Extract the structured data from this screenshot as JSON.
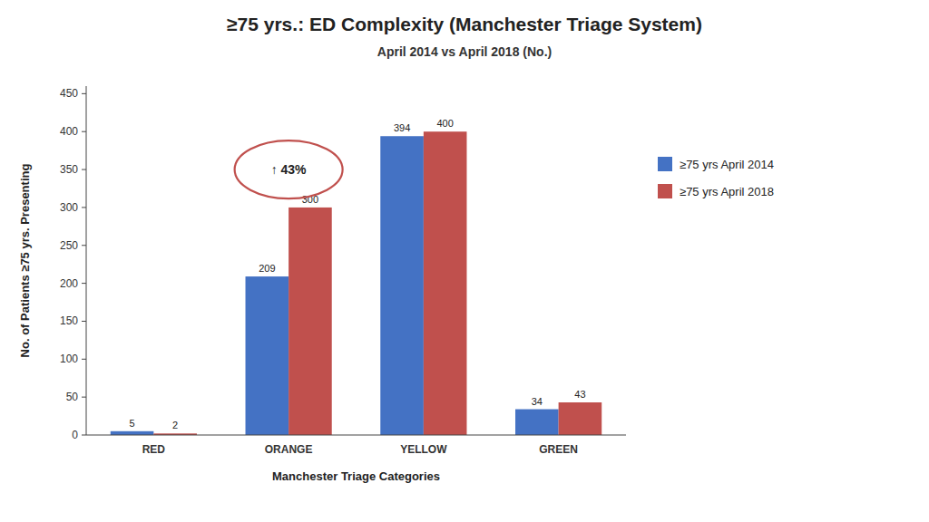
{
  "chart_data": {
    "type": "bar",
    "title": "≥75 yrs.: ED Complexity (Manchester Triage System)",
    "subtitle": "April 2014 vs April 2018 (No.)",
    "categories": [
      "RED",
      "ORANGE",
      "YELLOW",
      "GREEN"
    ],
    "series": [
      {
        "name": "≥75 yrs April 2014",
        "color": "#4472C4",
        "values": [
          5,
          209,
          394,
          34
        ]
      },
      {
        "name": "≥75 yrs April 2018",
        "color": "#C0504D",
        "values": [
          2,
          300,
          400,
          43
        ]
      }
    ],
    "xlabel": "Manchester Triage Categories",
    "ylabel": "No. of Patients ≥75 yrs. Presenting",
    "ylim": [
      0,
      460
    ],
    "yticks": [
      0,
      50,
      100,
      150,
      200,
      250,
      300,
      350,
      400,
      450
    ],
    "annotations": [
      {
        "text": "↑ 43%",
        "category": "ORANGE",
        "y": 350
      }
    ],
    "data_labels": true,
    "legend": "right",
    "grid": false
  }
}
